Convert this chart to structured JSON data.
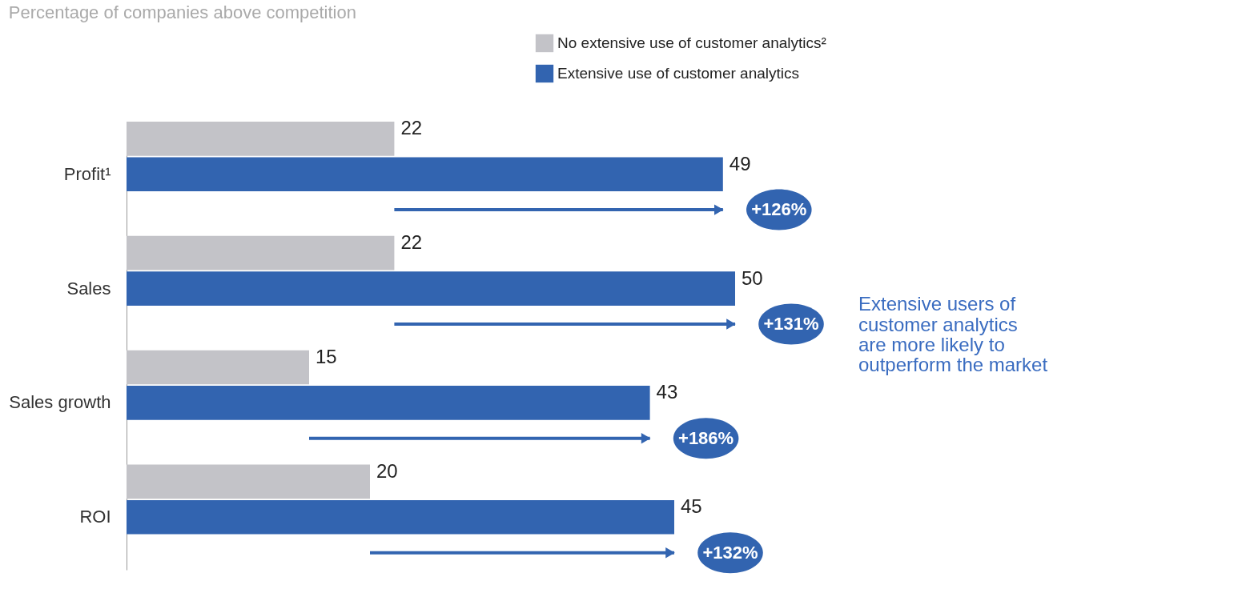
{
  "chart_data": {
    "type": "bar",
    "orientation": "horizontal",
    "subtitle": "Percentage of companies above competition",
    "categories": [
      "Profit¹",
      "Sales",
      "Sales growth",
      "ROI"
    ],
    "series": [
      {
        "name": "No extensive use of customer analytics²",
        "color": "#c3c3c8",
        "values": [
          22,
          22,
          15,
          20
        ]
      },
      {
        "name": "Extensive use of customer analytics",
        "color": "#3264b0",
        "values": [
          49,
          50,
          43,
          45
        ]
      }
    ],
    "data_labels": true,
    "legend": "top right",
    "annotations": [
      {
        "text": "+126%",
        "x": 49,
        "y": "Profit¹"
      },
      {
        "text": "+131%",
        "x": 50,
        "y": "Sales"
      },
      {
        "text": "+186%",
        "x": 43,
        "y": "Sales growth"
      },
      {
        "text": "+132%",
        "x": 45,
        "y": "ROI"
      },
      "Extensive users of customer analytics are more likely to outperform the market"
    ]
  }
}
